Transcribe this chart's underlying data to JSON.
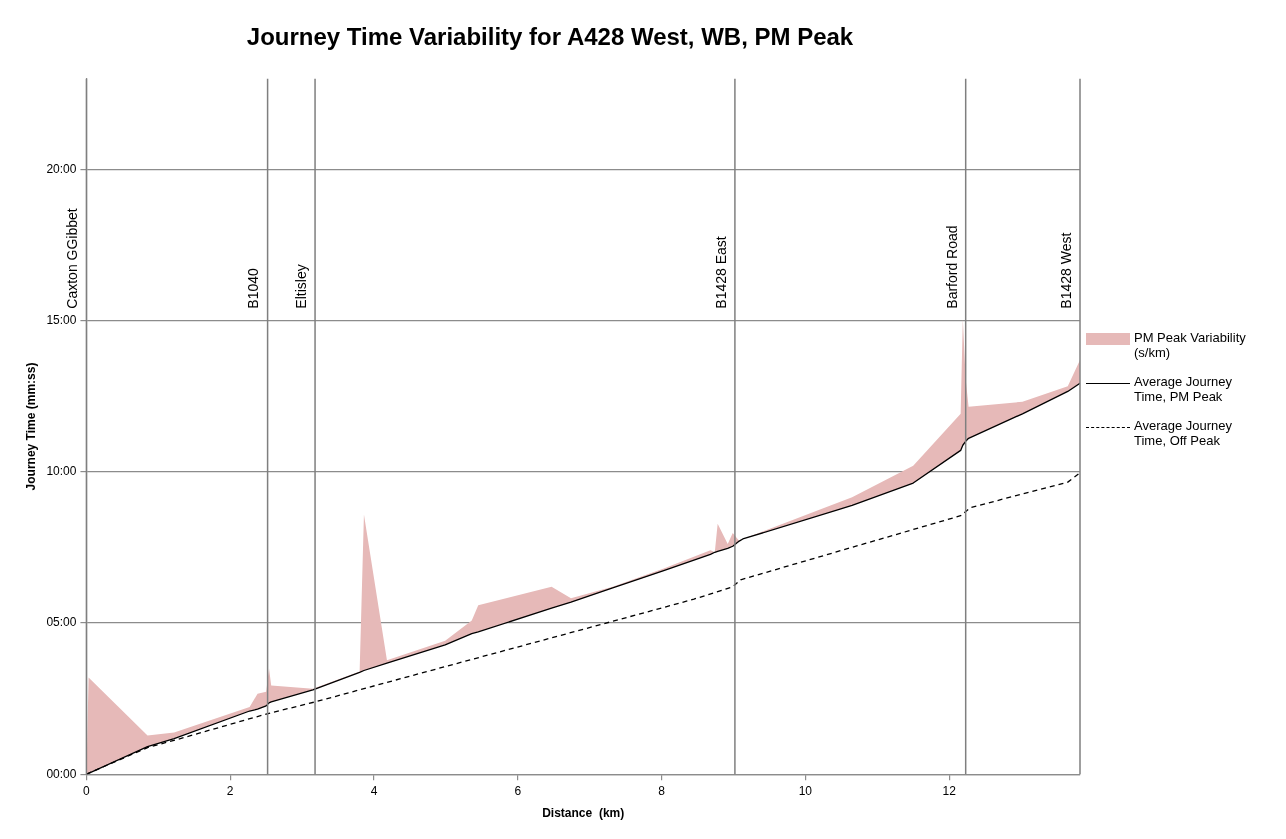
{
  "chart_data": {
    "type": "line",
    "title": "Journey Time Variability for A428 West, WB, PM Peak",
    "xlabel": "Distance  (km)",
    "ylabel": "Journey Time (mm:ss)",
    "xlim": [
      0,
      13.82
    ],
    "xticks": [
      0,
      2,
      4,
      6,
      8,
      10,
      12
    ],
    "ylim": [
      0,
      23
    ],
    "yticks": [
      {
        "value": 0,
        "label": "00:00"
      },
      {
        "value": 5,
        "label": "05:00"
      },
      {
        "value": 10,
        "label": "10:00"
      },
      {
        "value": 15,
        "label": "15:00"
      },
      {
        "value": 20,
        "label": "20:00"
      }
    ],
    "grid": "y",
    "legend": "right",
    "marker": "none",
    "x": [
      0,
      0.03,
      0.85,
      1.22,
      2.27,
      2.38,
      2.5,
      2.54,
      2.57,
      3.15,
      3.8,
      3.86,
      4.18,
      4.99,
      5.36,
      5.45,
      6.47,
      6.74,
      7.32,
      8.03,
      8.68,
      8.74,
      8.78,
      8.92,
      8.99,
      9.08,
      9.13,
      10.65,
      11.5,
      12.16,
      12.19,
      12.23,
      12.27,
      13.02,
      13.65,
      13.82
    ],
    "series": [
      {
        "name": "PM Peak Variability (s/km)",
        "type": "area",
        "color": "#e6b9b8",
        "values": [
          0,
          3.2,
          1.28,
          1.38,
          2.22,
          2.66,
          2.73,
          3.5,
          2.93,
          2.83,
          3.4,
          8.59,
          3.77,
          4.41,
          5.08,
          5.59,
          6.2,
          5.82,
          6.2,
          6.8,
          7.41,
          7.34,
          8.28,
          7.61,
          7.98,
          7.71,
          7.78,
          9.16,
          10.2,
          11.92,
          15.05,
          13.06,
          12.15,
          12.32,
          12.83,
          13.7
        ]
      },
      {
        "name": "Average Journey Time, PM Peak",
        "type": "line",
        "color": "#000000",
        "line_style": "solid",
        "values": [
          0,
          0.03,
          0.91,
          1.18,
          2.09,
          2.15,
          2.26,
          2.36,
          2.39,
          2.79,
          3.37,
          3.43,
          3.67,
          4.28,
          4.65,
          4.71,
          5.49,
          5.69,
          6.16,
          6.73,
          7.27,
          7.34,
          7.37,
          7.47,
          7.54,
          7.71,
          7.78,
          8.89,
          9.63,
          10.71,
          10.88,
          11.01,
          11.11,
          11.92,
          12.66,
          12.93
        ]
      },
      {
        "name": "Average Journey Time, Off Peak",
        "type": "line",
        "color": "#000000",
        "line_style": "dashed",
        "x": [
          0,
          0.85,
          1.25,
          2.5,
          3.18,
          3.86,
          7.93,
          8.45,
          8.99,
          9.1,
          12.16,
          12.3,
          13.65,
          13.82
        ],
        "values": [
          0,
          0.88,
          1.14,
          1.99,
          2.39,
          2.83,
          5.45,
          5.79,
          6.2,
          6.43,
          8.55,
          8.82,
          9.66,
          9.97
        ]
      }
    ],
    "ref_lines": [
      {
        "axis": "x",
        "value": 0,
        "label": "Caxton GGibbet",
        "color": "#7f7f7f"
      },
      {
        "axis": "x",
        "value": 2.52,
        "label": "B1040",
        "color": "#7f7f7f"
      },
      {
        "axis": "x",
        "value": 3.18,
        "label": "Eltisley",
        "color": "#7f7f7f"
      },
      {
        "axis": "x",
        "value": 9.02,
        "label": "B1428 East",
        "color": "#7f7f7f"
      },
      {
        "axis": "x",
        "value": 12.23,
        "label": "Barford Road",
        "color": "#7f7f7f"
      },
      {
        "axis": "x",
        "value": 13.82,
        "label": "B1428 West",
        "color": "#7f7f7f"
      }
    ]
  }
}
